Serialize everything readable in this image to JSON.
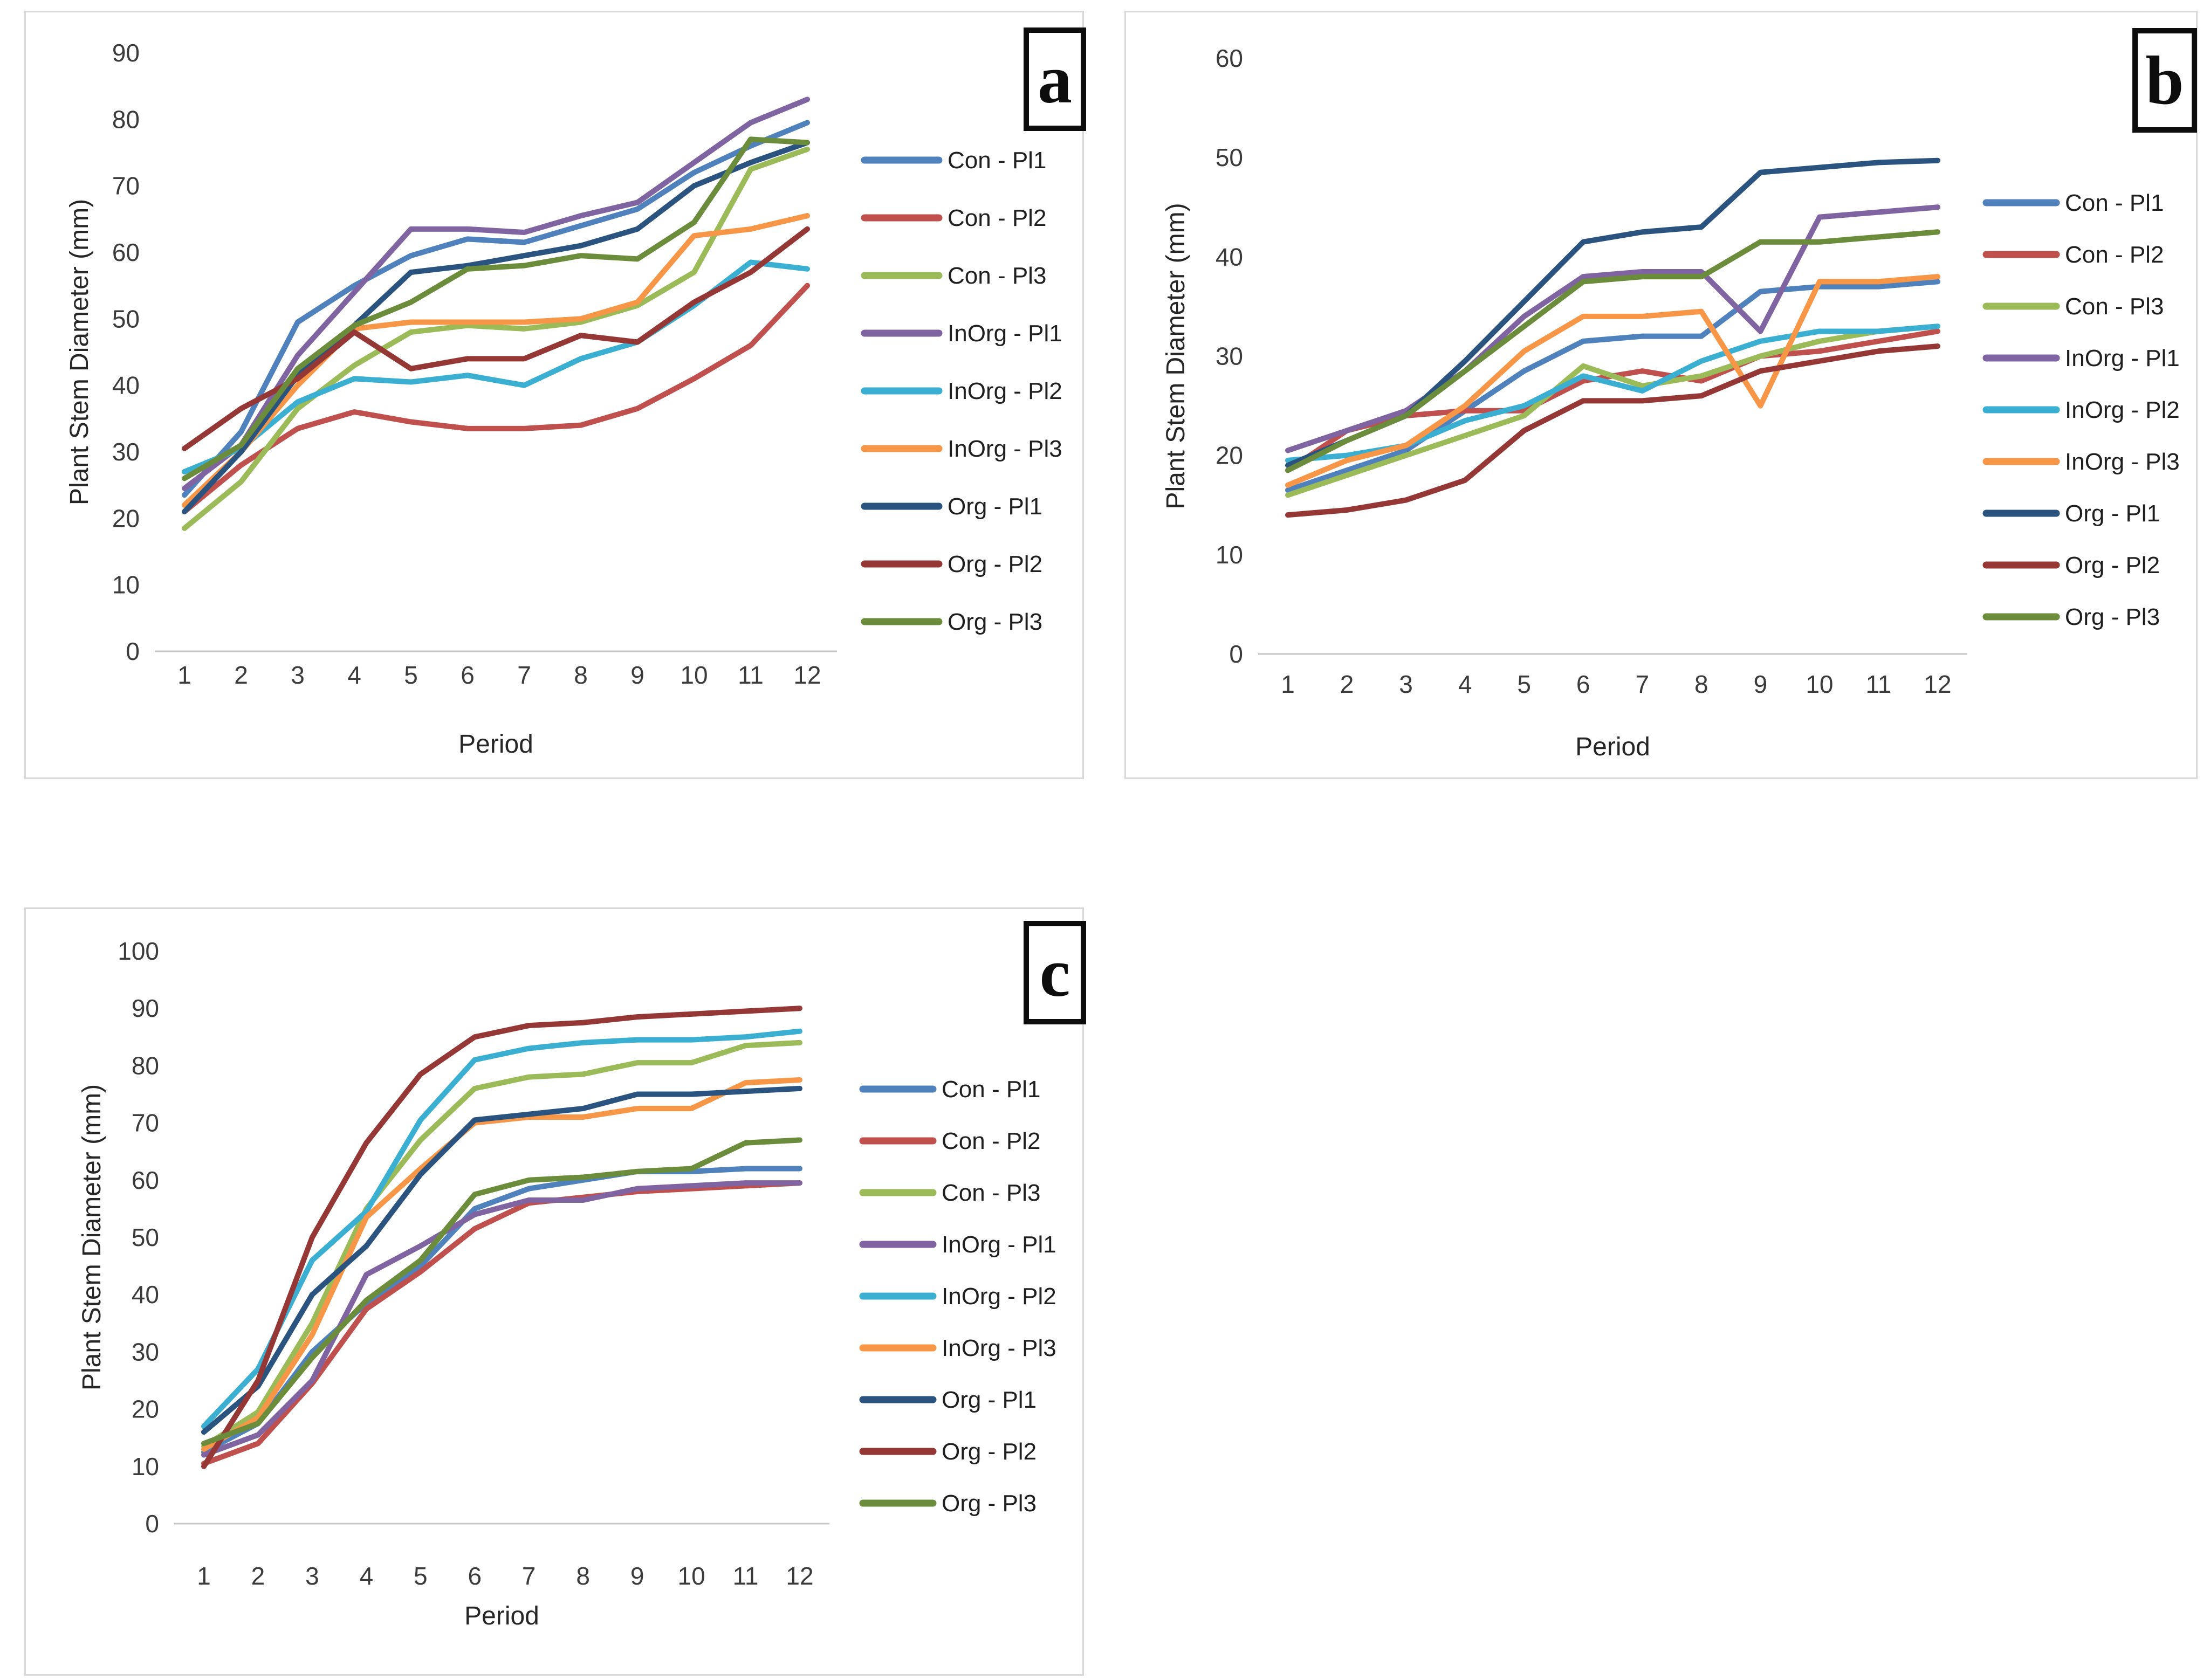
{
  "figure_caption_letters": [
    "a",
    "b",
    "c"
  ],
  "axis_labels": {
    "x": "Period",
    "y": "Plant Stem Diameter (mm)"
  },
  "palette": {
    "con_pl1": "#4F81BD",
    "con_pl2": "#C0504D",
    "con_pl3": "#9BBB59",
    "inorg_pl1": "#8064A2",
    "inorg_pl2": "#3BAFD2",
    "inorg_pl3": "#F79646",
    "org_pl1": "#2A5380",
    "org_pl2": "#953735",
    "org_pl3": "#6B8C3A"
  },
  "chart_data": [
    {
      "panel_label": "a",
      "type": "line",
      "x": [
        1,
        2,
        3,
        4,
        5,
        6,
        7,
        8,
        9,
        10,
        11,
        12
      ],
      "xlabel": "Period",
      "ylabel": "Plant Stem Diameter (mm)",
      "ylim": [
        0,
        90
      ],
      "ytick_step": 10,
      "grid": false,
      "legend_position": "right",
      "series": [
        {
          "name": "Con - Pl1",
          "color": "#4F81BD",
          "values": [
            23.5,
            33,
            49.5,
            55,
            59.5,
            62,
            61.5,
            64,
            66.5,
            72,
            76,
            79.5
          ]
        },
        {
          "name": "Con - Pl2",
          "color": "#C0504D",
          "values": [
            21,
            28,
            33.5,
            36,
            34.5,
            33.5,
            33.5,
            34,
            36.5,
            41,
            46,
            55
          ]
        },
        {
          "name": "Con - Pl3",
          "color": "#9BBB59",
          "values": [
            18.5,
            25.5,
            36.5,
            43,
            48,
            49,
            48.5,
            49.5,
            52,
            57,
            72.5,
            75.5
          ]
        },
        {
          "name": "InOrg - Pl1",
          "color": "#8064A2",
          "values": [
            24.5,
            31,
            44.5,
            54,
            63.5,
            63.5,
            63,
            65.5,
            67.5,
            73.5,
            79.5,
            83
          ]
        },
        {
          "name": "InOrg - Pl2",
          "color": "#3BAFD2",
          "values": [
            27,
            30.5,
            37.5,
            41,
            40.5,
            41.5,
            40,
            44,
            46.5,
            52,
            58.5,
            57.5
          ]
        },
        {
          "name": "InOrg - Pl3",
          "color": "#F79646",
          "values": [
            22,
            30,
            40,
            48.5,
            49.5,
            49.5,
            49.5,
            50,
            52.5,
            62.5,
            63.5,
            65.5
          ]
        },
        {
          "name": "Org - Pl1",
          "color": "#2A5380",
          "values": [
            21,
            30,
            41.5,
            49,
            57,
            58,
            59.5,
            61,
            63.5,
            70,
            73.5,
            76.5
          ]
        },
        {
          "name": "Org - Pl2",
          "color": "#953735",
          "values": [
            30.5,
            36.5,
            41,
            48,
            42.5,
            44,
            44,
            47.5,
            46.5,
            52.5,
            57,
            63.5
          ]
        },
        {
          "name": "Org - Pl3",
          "color": "#6B8C3A",
          "values": [
            26,
            31,
            42.5,
            49,
            52.5,
            57.5,
            58,
            59.5,
            59,
            64.5,
            77,
            76.5
          ]
        }
      ]
    },
    {
      "panel_label": "b",
      "type": "line",
      "x": [
        1,
        2,
        3,
        4,
        5,
        6,
        7,
        8,
        9,
        10,
        11,
        12
      ],
      "xlabel": "Period",
      "ylabel": "Plant Stem Diameter (mm)",
      "ylim": [
        0,
        60
      ],
      "ytick_step": 10,
      "grid": false,
      "legend_position": "right",
      "series": [
        {
          "name": "Con - Pl1",
          "color": "#4F81BD",
          "values": [
            16.5,
            18.5,
            20.5,
            24.5,
            28.5,
            31.5,
            32,
            32,
            36.5,
            37,
            37,
            37.5
          ]
        },
        {
          "name": "Con - Pl2",
          "color": "#C0504D",
          "values": [
            18.5,
            22.5,
            24,
            24.5,
            24.5,
            27.5,
            28.5,
            27.5,
            30,
            30.5,
            31.5,
            32.5
          ]
        },
        {
          "name": "Con - Pl3",
          "color": "#9BBB59",
          "values": [
            16,
            18,
            20,
            22,
            24,
            29,
            27,
            28,
            30,
            31.5,
            32.5,
            33
          ]
        },
        {
          "name": "InOrg - Pl1",
          "color": "#8064A2",
          "values": [
            20.5,
            22.5,
            24.5,
            28.5,
            34,
            38,
            38.5,
            38.5,
            32.5,
            44,
            44.5,
            45
          ]
        },
        {
          "name": "InOrg - Pl2",
          "color": "#3BAFD2",
          "values": [
            19.5,
            20,
            21,
            23.5,
            25,
            28,
            26.5,
            29.5,
            31.5,
            32.5,
            32.5,
            33
          ]
        },
        {
          "name": "InOrg - Pl3",
          "color": "#F79646",
          "values": [
            17,
            19.5,
            21,
            25,
            30.5,
            34,
            34,
            34.5,
            25,
            37.5,
            37.5,
            38
          ]
        },
        {
          "name": "Org - Pl1",
          "color": "#2A5380",
          "values": [
            19,
            21.5,
            24,
            29.5,
            35.5,
            41.5,
            42.5,
            43,
            48.5,
            49,
            49.5,
            49.7
          ]
        },
        {
          "name": "Org - Pl2",
          "color": "#953735",
          "values": [
            14,
            14.5,
            15.5,
            17.5,
            22.5,
            25.5,
            25.5,
            26,
            28.5,
            29.5,
            30.5,
            31
          ]
        },
        {
          "name": "Org - Pl3",
          "color": "#6B8C3A",
          "values": [
            18.5,
            21.5,
            24,
            28.5,
            33,
            37.5,
            38,
            38,
            41.5,
            41.5,
            42,
            42.5
          ]
        }
      ]
    },
    {
      "panel_label": "c",
      "type": "line",
      "x": [
        1,
        2,
        3,
        4,
        5,
        6,
        7,
        8,
        9,
        10,
        11,
        12
      ],
      "xlabel": "Period",
      "ylabel": "Plant Stem Diameter (mm)",
      "ylim": [
        0,
        100
      ],
      "ytick_step": 10,
      "grid": false,
      "legend_position": "right",
      "series": [
        {
          "name": "Con - Pl1",
          "color": "#4F81BD",
          "values": [
            12.5,
            17.5,
            30,
            38.5,
            45,
            55,
            58.5,
            60,
            61.5,
            61.5,
            62,
            62
          ]
        },
        {
          "name": "Con - Pl2",
          "color": "#C0504D",
          "values": [
            10.5,
            14,
            24.5,
            37.5,
            44,
            51.5,
            56,
            57,
            58,
            58.5,
            59,
            59.5
          ]
        },
        {
          "name": "Con - Pl3",
          "color": "#9BBB59",
          "values": [
            13.5,
            19.5,
            35,
            55,
            67,
            76,
            78,
            78.5,
            80.5,
            80.5,
            83.5,
            84
          ]
        },
        {
          "name": "InOrg - Pl1",
          "color": "#8064A2",
          "values": [
            12,
            15.5,
            25,
            43.5,
            48.5,
            54,
            56.5,
            56.5,
            58.5,
            59,
            59.5,
            59.5
          ]
        },
        {
          "name": "InOrg - Pl2",
          "color": "#3BAFD2",
          "values": [
            17,
            27,
            46,
            54.5,
            70.5,
            81,
            83,
            84,
            84.5,
            84.5,
            85,
            86
          ]
        },
        {
          "name": "InOrg - Pl3",
          "color": "#F79646",
          "values": [
            13,
            18.5,
            33,
            53.5,
            62,
            70,
            71,
            71,
            72.5,
            72.5,
            77,
            77.5
          ]
        },
        {
          "name": "Org - Pl1",
          "color": "#2A5380",
          "values": [
            16,
            24,
            40,
            48.5,
            61,
            70.5,
            71.5,
            72.5,
            75,
            75,
            75.5,
            76
          ]
        },
        {
          "name": "Org - Pl2",
          "color": "#953735",
          "values": [
            10,
            25,
            50,
            66.5,
            78.5,
            85,
            87,
            87.5,
            88.5,
            89,
            89.5,
            90
          ]
        },
        {
          "name": "Org - Pl3",
          "color": "#6B8C3A",
          "values": [
            14,
            17.5,
            29,
            39,
            46,
            57.5,
            60,
            60.5,
            61.5,
            62,
            66.5,
            67
          ]
        }
      ]
    }
  ]
}
